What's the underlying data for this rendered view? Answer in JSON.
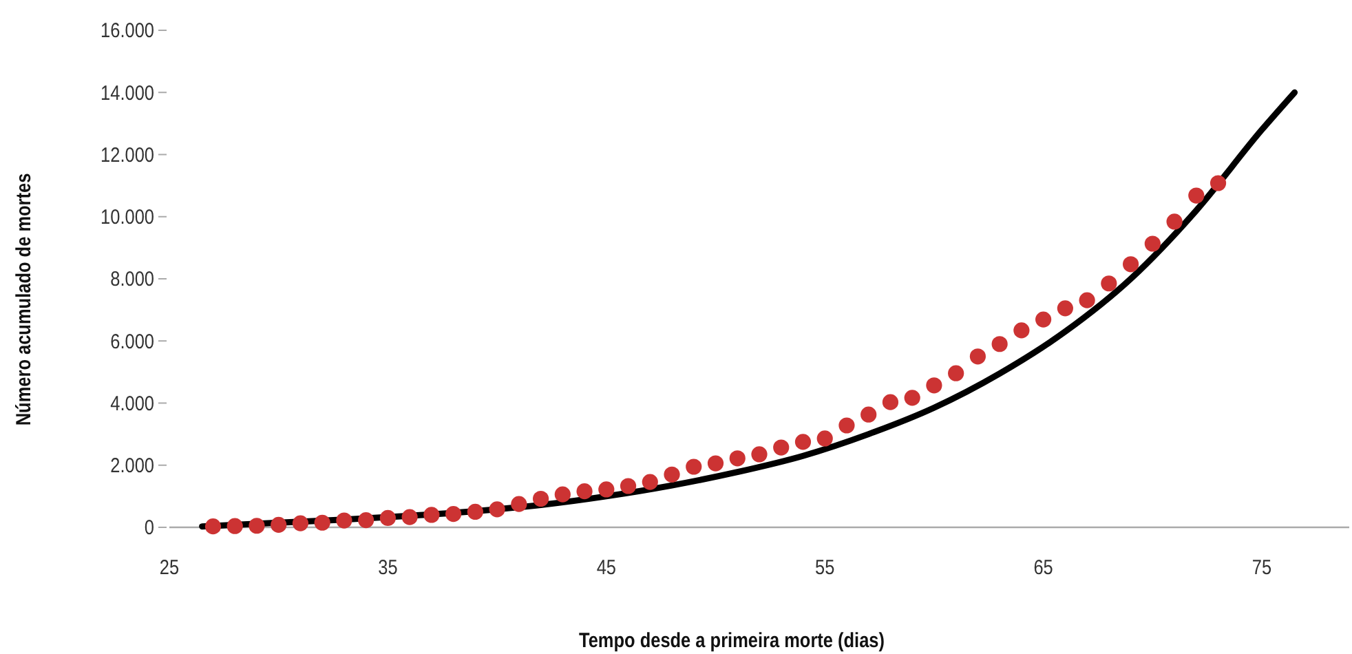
{
  "chart_data": {
    "type": "scatter",
    "xlabel": "Tempo desde a primeira morte (dias)",
    "ylabel": "Número acumulado de mortes",
    "xlim": [
      25,
      79
    ],
    "xticks": [
      25,
      35,
      45,
      55,
      65,
      75
    ],
    "ylim": [
      0,
      16000
    ],
    "yticks": [
      0,
      {
        "value": 2000,
        "label": "2.000"
      },
      {
        "value": 4000,
        "label": "4.000"
      },
      {
        "value": 6000,
        "label": "6.000"
      },
      {
        "value": 8000,
        "label": "8.000"
      },
      {
        "value": 10000,
        "label": "10.000"
      },
      {
        "value": 12000,
        "label": "12.000"
      },
      {
        "value": 14000,
        "label": "14.000"
      },
      {
        "value": 16000,
        "label": "16.000"
      }
    ],
    "grid": false,
    "series": [
      {
        "type": "line",
        "color": "#000000",
        "marker": "none",
        "line_style": "solid",
        "x": [
          26.5,
          30,
          33,
          36,
          39,
          42,
          45,
          48,
          51,
          54,
          57,
          60,
          63,
          66,
          69,
          72,
          75,
          76.5
        ],
        "values": [
          30,
          150,
          250,
          370,
          520,
          720,
          1000,
          1350,
          1780,
          2300,
          3000,
          3850,
          4950,
          6300,
          8000,
          10200,
          12800,
          14000
        ]
      },
      {
        "color": "#cc3333",
        "marker": "circle",
        "x": [
          27,
          28,
          29,
          30,
          31,
          32,
          33,
          34,
          35,
          36,
          37,
          38,
          39,
          40,
          41,
          42,
          43,
          44,
          45,
          46,
          47,
          48,
          49,
          50,
          51,
          52,
          53,
          54,
          55,
          56,
          57,
          58,
          59,
          60,
          61,
          62,
          63,
          64,
          65,
          66,
          67,
          68,
          69,
          70,
          71,
          72,
          73
        ],
        "values": [
          30,
          40,
          50,
          80,
          130,
          150,
          220,
          230,
          300,
          330,
          400,
          430,
          500,
          580,
          750,
          920,
          1060,
          1160,
          1220,
          1330,
          1460,
          1700,
          1950,
          2060,
          2220,
          2350,
          2570,
          2750,
          2860,
          3280,
          3630,
          4030,
          4170,
          4570,
          4960,
          5500,
          5900,
          6340,
          6690,
          7050,
          7310,
          7850,
          8470,
          9130,
          9840,
          10680,
          11080
        ]
      }
    ]
  }
}
